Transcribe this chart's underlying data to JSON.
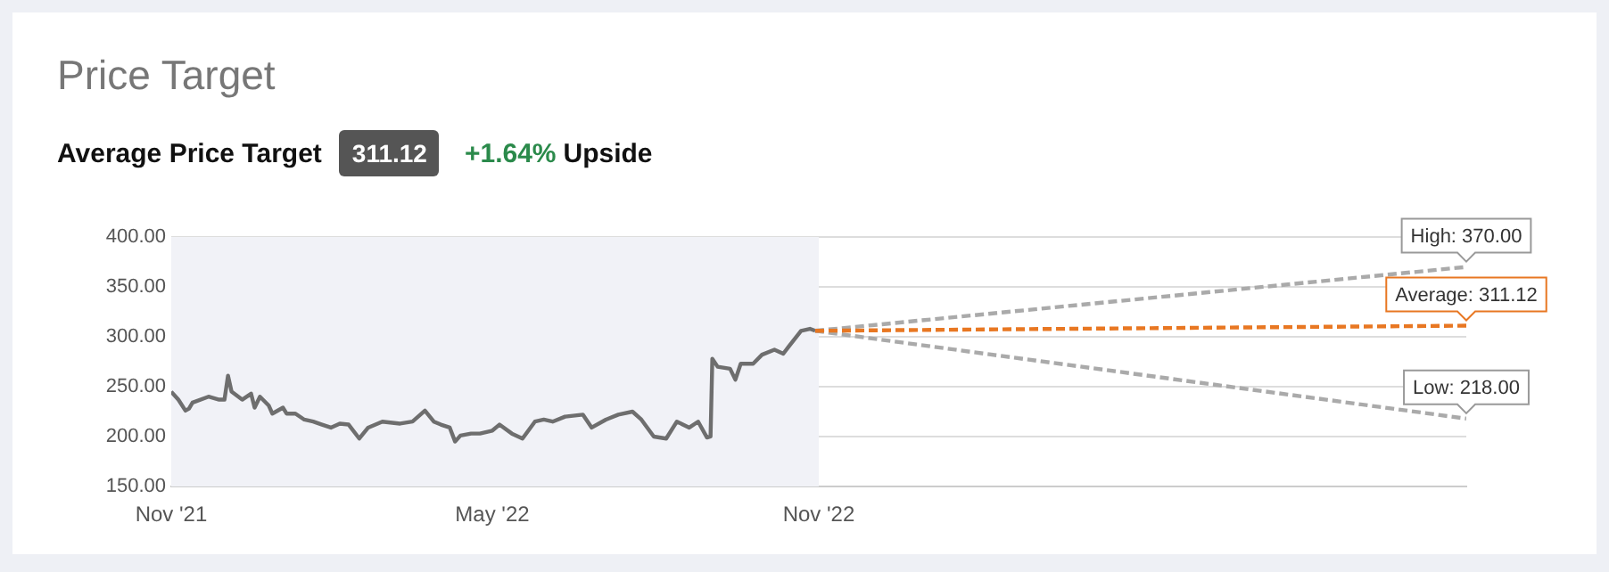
{
  "chart_data": {
    "type": "line",
    "title": "Price Target",
    "subtitle": "Average Price Target",
    "annotations": [
      "311.12",
      "+1.64%",
      "Upside",
      {
        "text": "High: 370.00",
        "x": "2023-11-01",
        "y": 370
      },
      {
        "text": "Average: 311.12",
        "x": "2023-11-01",
        "y": 311.12
      },
      {
        "text": "Low: 218.00",
        "x": "2023-11-01",
        "y": 218
      }
    ],
    "xlim": [
      "2021-11-01",
      "2023-11-01"
    ],
    "xticks": [
      {
        "value": "2021-11-01",
        "label": "Nov '21"
      },
      {
        "value": "2022-05-01",
        "label": "May '22"
      },
      {
        "value": "2022-11-01",
        "label": "Nov '22"
      }
    ],
    "ylim": [
      150,
      400
    ],
    "yticks": [
      {
        "value": 150,
        "label": "150.00"
      },
      {
        "value": 200,
        "label": "200.00"
      },
      {
        "value": 250,
        "label": "250.00"
      },
      {
        "value": 300,
        "label": "300.00"
      },
      {
        "value": 350,
        "label": "350.00"
      },
      {
        "value": 400,
        "label": "400.00"
      }
    ],
    "grid": "y",
    "legend": false,
    "marker": "none",
    "bands": [
      {
        "axis": "x",
        "from": "2021-11-01",
        "to": "2022-11-01",
        "color": "#f1f2f7"
      }
    ],
    "series": [
      {
        "color": "#6e6e6e",
        "line_style": "solid",
        "x": [
          "2021-11-01",
          "2021-11-05",
          "2021-11-09",
          "2021-11-11",
          "2021-11-13",
          "2021-11-22",
          "2021-11-28",
          "2021-12-01",
          "2021-12-03",
          "2021-12-05",
          "2021-12-11",
          "2021-12-16",
          "2021-12-18",
          "2021-12-21",
          "2021-12-26",
          "2021-12-28",
          "2022-01-03",
          "2022-01-05",
          "2022-01-10",
          "2022-01-15",
          "2022-01-20",
          "2022-01-25",
          "2022-01-30",
          "2022-02-04",
          "2022-02-09",
          "2022-02-15",
          "2022-02-20",
          "2022-02-28",
          "2022-03-10",
          "2022-03-17",
          "2022-03-24",
          "2022-03-29",
          "2022-04-02",
          "2022-04-07",
          "2022-04-10",
          "2022-04-13",
          "2022-04-19",
          "2022-04-24",
          "2022-05-01",
          "2022-05-05",
          "2022-05-12",
          "2022-05-18",
          "2022-05-25",
          "2022-05-30",
          "2022-06-04",
          "2022-06-11",
          "2022-06-21",
          "2022-06-26",
          "2022-07-04",
          "2022-07-11",
          "2022-07-19",
          "2022-07-24",
          "2022-07-31",
          "2022-08-07",
          "2022-08-13",
          "2022-08-20",
          "2022-08-25",
          "2022-08-30",
          "2022-09-01",
          "2022-09-02",
          "2022-09-05",
          "2022-09-12",
          "2022-09-15",
          "2022-09-18",
          "2022-09-25",
          "2022-09-30",
          "2022-10-07",
          "2022-10-12",
          "2022-10-15",
          "2022-10-22",
          "2022-10-27",
          "2022-10-30"
        ],
        "values": [
          245,
          237,
          226,
          228,
          234,
          240,
          237,
          237,
          261,
          245,
          237,
          243,
          229,
          240,
          231,
          223,
          229,
          223,
          223,
          217,
          215,
          212,
          209,
          213,
          212,
          198,
          209,
          215,
          213,
          215,
          226,
          215,
          212,
          209,
          195,
          201,
          203,
          203,
          206,
          212,
          203,
          198,
          215,
          217,
          215,
          220,
          222,
          209,
          217,
          222,
          225,
          217,
          200,
          198,
          215,
          209,
          215,
          199,
          200,
          278,
          270,
          268,
          257,
          273,
          273,
          282,
          287,
          283,
          290,
          306,
          308,
          306
        ]
      },
      {
        "color": "#aaaaaa",
        "line_style": "dashed",
        "x": [
          "2022-10-30",
          "2023-11-01"
        ],
        "values": [
          306,
          370
        ]
      },
      {
        "color": "#aaaaaa",
        "line_style": "dashed",
        "x": [
          "2022-10-30",
          "2023-11-01"
        ],
        "values": [
          306,
          218
        ]
      },
      {
        "color": "#e87722",
        "line_style": "dashed",
        "x": [
          "2022-10-30",
          "2023-11-01"
        ],
        "values": [
          306,
          311.12
        ]
      }
    ]
  }
}
